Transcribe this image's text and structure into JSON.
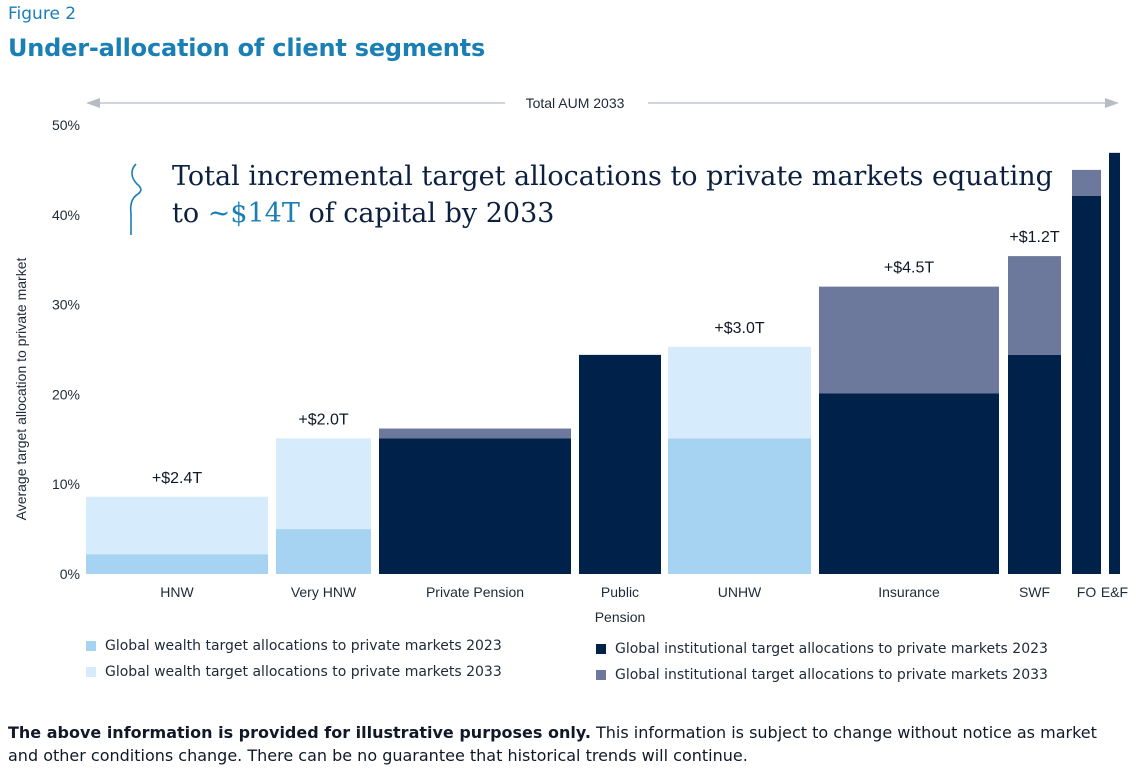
{
  "figure_label": "Figure 2",
  "title": "Under-allocation of client segments",
  "colors": {
    "wealth_2023": "#a7d3f3",
    "wealth_2033": "#d6ebfb",
    "inst_2023": "#00224a",
    "inst_2033": "#6d799c",
    "accent": "#1a7fb5"
  },
  "chart_data": {
    "type": "bar",
    "variant": "stacked-variable-width (mekko)",
    "top_axis_label": "Total AUM 2033",
    "ylabel": "Average target allocation to private market",
    "ylim": [
      0,
      50
    ],
    "yticks": [
      "0%",
      "10%",
      "20%",
      "30%",
      "40%",
      "50%"
    ],
    "grid": false,
    "legend_position": "bottom",
    "annotation": {
      "text_before": "Total incremental target allocations to private markets equating",
      "text_line2_prefix": "to ",
      "highlight": "~$14T",
      "text_line2_suffix": " of capital by 2033"
    },
    "segments": [
      {
        "label": "HNW",
        "label_line2": "",
        "group": "wealth",
        "base_2023": 2.2,
        "total_2033": 8.6,
        "increment_label": "+$2.4T"
      },
      {
        "label": "Very HNW",
        "label_line2": "",
        "group": "wealth",
        "base_2023": 5.0,
        "total_2033": 15.1,
        "increment_label": "+$2.0T"
      },
      {
        "label": "Private Pension",
        "label_line2": "",
        "group": "institutional",
        "base_2023": 15.1,
        "total_2033": 16.2,
        "increment_label": ""
      },
      {
        "label": "Public",
        "label_line2": "Pension",
        "group": "institutional",
        "base_2023": 24.4,
        "total_2033": 24.4,
        "increment_label": ""
      },
      {
        "label": "UNHW",
        "label_line2": "",
        "group": "wealth",
        "base_2023": 15.1,
        "total_2033": 25.3,
        "increment_label": "+$3.0T"
      },
      {
        "label": "Insurance",
        "label_line2": "",
        "group": "institutional",
        "base_2023": 20.1,
        "total_2033": 32.0,
        "increment_label": "+$4.5T"
      },
      {
        "label": "SWF",
        "label_line2": "",
        "group": "institutional",
        "base_2023": 24.4,
        "total_2033": 35.4,
        "increment_label": "+$1.2T"
      },
      {
        "label": "FO",
        "label_line2": "",
        "group": "institutional",
        "base_2023": 42.1,
        "total_2033": 45.0,
        "increment_label": ""
      },
      {
        "label": "E&F",
        "label_line2": "",
        "group": "institutional",
        "base_2023": 46.9,
        "total_2033": 46.9,
        "increment_label": ""
      }
    ]
  },
  "legend": {
    "wealth_2023": "Global wealth target allocations to private markets 2023",
    "wealth_2033": "Global wealth target allocations to private markets 2033",
    "inst_2023": "Global institutional target allocations to private markets 2023",
    "inst_2033": "Global institutional target allocations to private markets 2033"
  },
  "disclaimer": {
    "bold": "The above information is provided for illustrative purposes only.",
    "rest": " This information is subject to change without notice as market and other conditions change. There can be no guarantee that historical trends will continue."
  }
}
